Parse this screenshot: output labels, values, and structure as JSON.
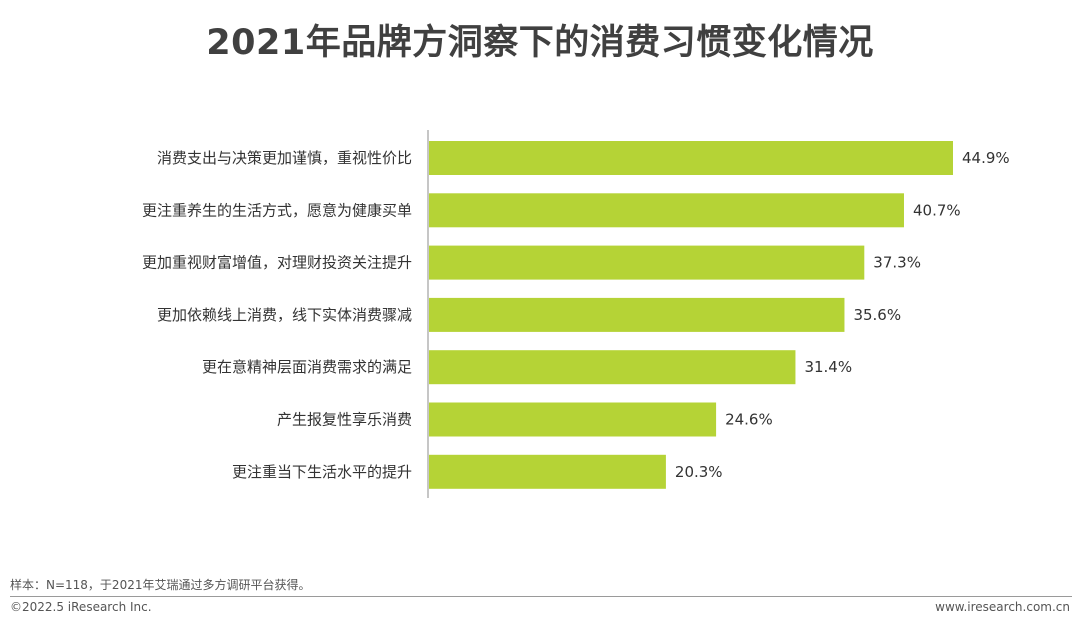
{
  "title": "2021年品牌方洞察下的消费习惯变化情况",
  "chart_data": {
    "type": "bar",
    "orientation": "horizontal",
    "categories": [
      "消费支出与决策更加谨慎，重视性价比",
      "更注重养生的生活方式，愿意为健康买单",
      "更加重视财富增值，对理财投资关注提升",
      "更加依赖线上消费，线下实体消费骤减",
      "更在意精神层面消费需求的满足",
      "产生报复性享乐消费",
      "更注重当下生活水平的提升"
    ],
    "values": [
      44.9,
      40.7,
      37.3,
      35.6,
      31.4,
      24.6,
      20.3
    ],
    "value_labels": [
      "44.9%",
      "40.7%",
      "37.3%",
      "35.6%",
      "31.4%",
      "24.6%",
      "20.3%"
    ],
    "unit": "%",
    "xlim": [
      0,
      44.9
    ],
    "bar_color": "#b5d336",
    "grid": false,
    "legend": "none"
  },
  "footer": {
    "note": "样本：N=118，于2021年艾瑞通过多方调研平台获得。",
    "copyright": "©2022.5 iResearch Inc.",
    "website": "www.iresearch.com.cn"
  }
}
